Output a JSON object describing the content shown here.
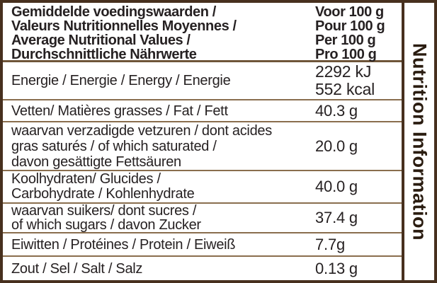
{
  "label": {
    "header": {
      "title_lines": [
        "Gemiddelde voedingswaarden /",
        "Valeurs Nutritionnelles Moyennes /",
        "Average Nutritional Values /",
        "Durchschnittliche Nährwerte"
      ],
      "per_lines": [
        "Voor 100 g",
        "Pour 100 g",
        "Per 100 g",
        "Pro 100 g"
      ]
    },
    "rows": [
      {
        "label_lines": [
          "Energie / Energie / Energy / Energie"
        ],
        "value_lines": [
          "2292 kJ",
          "552 kcal"
        ]
      },
      {
        "label_lines": [
          "Vetten/ Matières grasses / Fat / Fett"
        ],
        "value_lines": [
          "40.3 g"
        ]
      },
      {
        "label_lines": [
          "waarvan verzadigde vetzuren / dont acides",
          "gras saturés / of which saturated  /",
          "davon gesättigte Fettsäuren"
        ],
        "value_lines": [
          "20.0 g"
        ]
      },
      {
        "label_lines": [
          "Koolhydraten/ Glucides /",
          "Carbohydrate / Kohlenhydrate"
        ],
        "value_lines": [
          "40.0 g"
        ]
      },
      {
        "label_lines": [
          "waarvan suikers/ dont sucres /",
          "of which sugars / davon Zucker"
        ],
        "value_lines": [
          "37.4 g"
        ]
      },
      {
        "label_lines": [
          "Eiwitten / Protéines / Protein / Eiweiß"
        ],
        "value_lines": [
          "7.7g"
        ]
      },
      {
        "label_lines": [
          "Zout / Sel / Salt / Salz"
        ],
        "value_lines": [
          "0.13 g"
        ]
      }
    ],
    "sidebar": {
      "title": "Nutrition Information"
    },
    "colors": {
      "border": "#47301e",
      "row_divider": "#8a6e4e",
      "header_divider": "#6f5539",
      "text": "#262122",
      "sidebar_text": "#2a1c10",
      "background": "#ffffff"
    }
  }
}
